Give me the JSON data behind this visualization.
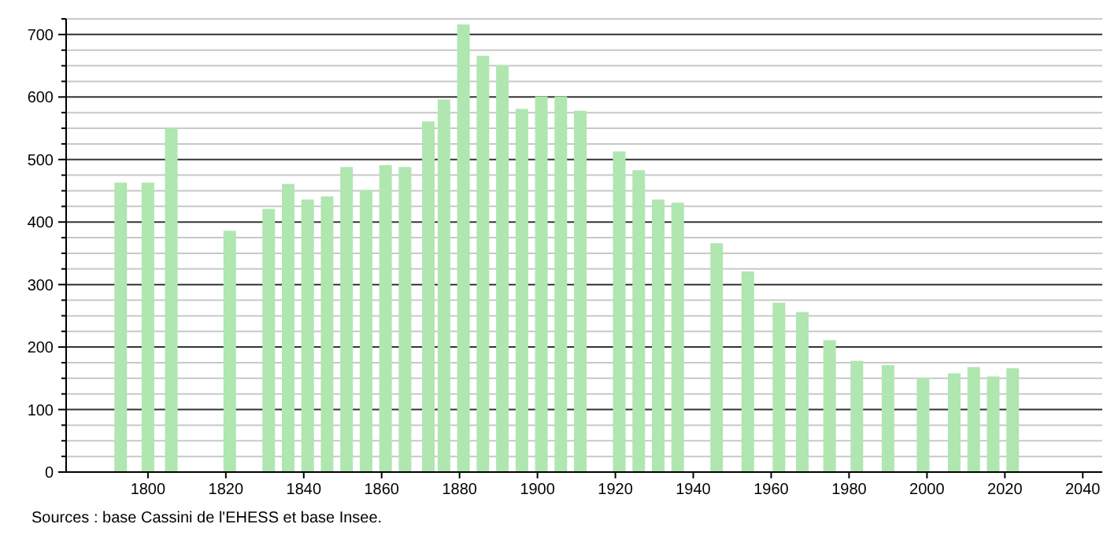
{
  "chart_data": {
    "type": "bar",
    "x": [
      1793,
      1800,
      1806,
      1821,
      1831,
      1836,
      1841,
      1846,
      1851,
      1856,
      1861,
      1866,
      1872,
      1876,
      1881,
      1886,
      1891,
      1896,
      1901,
      1906,
      1911,
      1921,
      1926,
      1931,
      1936,
      1946,
      1954,
      1962,
      1968,
      1975,
      1982,
      1990,
      1999,
      2007,
      2012,
      2017,
      2022
    ],
    "values": [
      463,
      463,
      551,
      386,
      421,
      461,
      436,
      441,
      488,
      451,
      491,
      488,
      561,
      596,
      716,
      666,
      651,
      581,
      601,
      601,
      578,
      513,
      483,
      436,
      431,
      366,
      321,
      271,
      256,
      211,
      178,
      171,
      151,
      158,
      168,
      153,
      166
    ],
    "color": "#b0e6b0",
    "xlim": [
      1779,
      2045
    ],
    "xticks": [
      1800,
      1820,
      1840,
      1860,
      1880,
      1900,
      1920,
      1940,
      1960,
      1980,
      2000,
      2020,
      2040
    ],
    "ylim": [
      0,
      725
    ],
    "yticks": [
      0,
      {
        "value": 25,
        "label": null
      },
      {
        "value": 50,
        "label": null
      },
      {
        "value": 75,
        "label": null
      },
      100,
      {
        "value": 125,
        "label": null
      },
      {
        "value": 150,
        "label": null
      },
      {
        "value": 175,
        "label": null
      },
      200,
      {
        "value": 225,
        "label": null
      },
      {
        "value": 250,
        "label": null
      },
      {
        "value": 275,
        "label": null
      },
      300,
      {
        "value": 325,
        "label": null
      },
      {
        "value": 350,
        "label": null
      },
      {
        "value": 375,
        "label": null
      },
      400,
      {
        "value": 425,
        "label": null
      },
      {
        "value": 450,
        "label": null
      },
      {
        "value": 475,
        "label": null
      },
      500,
      {
        "value": 525,
        "label": null
      },
      {
        "value": 550,
        "label": null
      },
      {
        "value": 575,
        "label": null
      },
      600,
      {
        "value": 625,
        "label": null
      },
      {
        "value": 650,
        "label": null
      },
      {
        "value": 675,
        "label": null
      },
      700,
      {
        "value": 725,
        "label": null
      }
    ],
    "grid": "y",
    "annotations": [
      "Sources : base Cassini de l'EHESS et base Insee."
    ]
  }
}
